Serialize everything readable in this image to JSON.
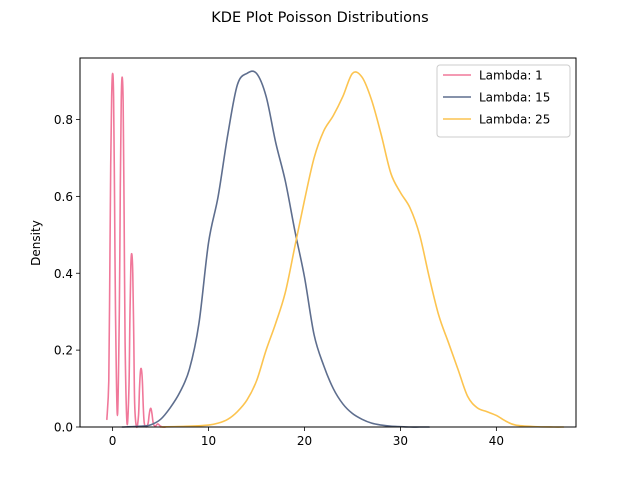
{
  "chart_data": {
    "type": "line",
    "title": "KDE Plot Poisson Distributions",
    "xlabel": "",
    "ylabel": "Density",
    "xlim": [
      -3.4,
      48.3
    ],
    "ylim": [
      0,
      0.96
    ],
    "xticks": [
      0,
      10,
      20,
      30,
      40
    ],
    "yticks": [
      0.0,
      0.2,
      0.4,
      0.6,
      0.8
    ],
    "grid": false,
    "legend_position": "top-right",
    "series": [
      {
        "name": "Lambda: 1",
        "color": "#f0789a",
        "x": [
          -0.6,
          -0.4,
          -0.3,
          -0.2,
          -0.1,
          0.0,
          0.1,
          0.2,
          0.3,
          0.5,
          0.7,
          0.8,
          0.9,
          1.0,
          1.1,
          1.2,
          1.3,
          1.5,
          1.7,
          1.8,
          1.9,
          2.0,
          2.1,
          2.2,
          2.3,
          2.5,
          2.7,
          2.8,
          2.9,
          3.0,
          3.1,
          3.2,
          3.3,
          3.5,
          3.7,
          3.8,
          3.9,
          4.0,
          4.1,
          4.2,
          4.3,
          4.5,
          4.7,
          5.0,
          5.2,
          5.5
        ],
        "y": [
          0.02,
          0.12,
          0.38,
          0.68,
          0.86,
          0.92,
          0.86,
          0.6,
          0.3,
          0.03,
          0.3,
          0.62,
          0.85,
          0.91,
          0.84,
          0.55,
          0.22,
          0.01,
          0.1,
          0.28,
          0.42,
          0.45,
          0.4,
          0.24,
          0.06,
          0.0,
          0.03,
          0.1,
          0.145,
          0.15,
          0.12,
          0.05,
          0.01,
          0.0,
          0.01,
          0.03,
          0.045,
          0.048,
          0.035,
          0.015,
          0.005,
          0.003,
          0.008,
          0.002,
          0.0,
          0.0
        ]
      },
      {
        "name": "Lambda: 15",
        "color": "#5e6e8e",
        "x": [
          1.0,
          3.0,
          4.0,
          5.0,
          6.0,
          7.0,
          8.0,
          9.0,
          10.0,
          11.0,
          12.0,
          13.0,
          14.0,
          15.0,
          16.0,
          17.0,
          18.0,
          19.0,
          20.0,
          21.0,
          22.0,
          23.0,
          24.0,
          25.0,
          26.0,
          27.0,
          28.0,
          29.0,
          30.0,
          31.0,
          32.0,
          33.0
        ],
        "y": [
          0.0,
          0.002,
          0.006,
          0.02,
          0.05,
          0.09,
          0.15,
          0.27,
          0.48,
          0.6,
          0.76,
          0.89,
          0.92,
          0.92,
          0.86,
          0.74,
          0.64,
          0.51,
          0.39,
          0.24,
          0.16,
          0.1,
          0.06,
          0.035,
          0.02,
          0.01,
          0.005,
          0.002,
          0.001,
          0.0,
          0.0,
          0.0
        ]
      },
      {
        "name": "Lambda: 25",
        "color": "#fcc450",
        "x": [
          5.0,
          8.0,
          10.0,
          11.0,
          12.0,
          13.0,
          14.0,
          15.0,
          16.0,
          17.0,
          18.0,
          19.0,
          20.0,
          21.0,
          22.0,
          23.0,
          24.0,
          25.0,
          26.0,
          27.0,
          28.0,
          29.0,
          30.0,
          31.0,
          32.0,
          33.0,
          34.0,
          35.0,
          36.0,
          37.0,
          38.0,
          39.0,
          40.0,
          41.0,
          42.0,
          44.0,
          46.0,
          47.0
        ],
        "y": [
          0.0,
          0.002,
          0.005,
          0.01,
          0.02,
          0.04,
          0.07,
          0.12,
          0.2,
          0.27,
          0.35,
          0.47,
          0.59,
          0.7,
          0.77,
          0.81,
          0.86,
          0.92,
          0.91,
          0.85,
          0.76,
          0.66,
          0.61,
          0.57,
          0.5,
          0.39,
          0.29,
          0.22,
          0.15,
          0.08,
          0.05,
          0.04,
          0.03,
          0.015,
          0.005,
          0.001,
          0.0,
          0.0
        ]
      }
    ]
  }
}
